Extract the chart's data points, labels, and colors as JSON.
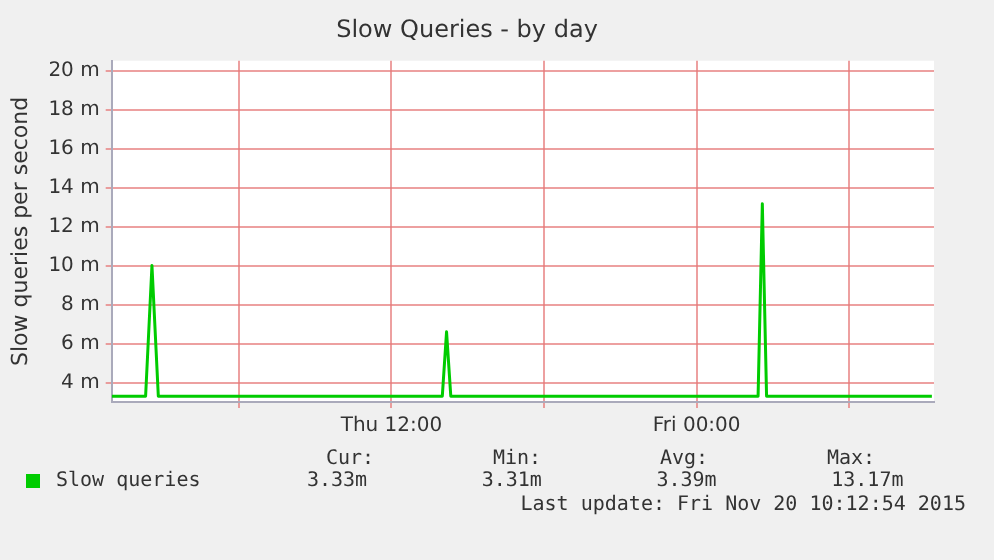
{
  "chart_data": {
    "type": "line",
    "title": "Slow Queries - by day",
    "ylabel": "Slow queries per second",
    "x": [
      "2015-11-19T01:00",
      "2015-11-19T02:20",
      "2015-11-19T02:35",
      "2015-11-19T02:50",
      "2015-11-19T05:00",
      "2015-11-19T08:00",
      "2015-11-19T11:00",
      "2015-11-19T14:00",
      "2015-11-19T14:10",
      "2015-11-19T14:20",
      "2015-11-19T17:00",
      "2015-11-19T20:00",
      "2015-11-19T23:00",
      "2015-11-20T02:25",
      "2015-11-20T02:35",
      "2015-11-20T02:45",
      "2015-11-20T05:00",
      "2015-11-20T08:00",
      "2015-11-20T09:15"
    ],
    "series": [
      {
        "name": "Slow queries",
        "color": "#00cc00",
        "values": [
          3.3,
          3.3,
          10.0,
          3.3,
          3.3,
          3.3,
          3.3,
          3.3,
          6.6,
          3.3,
          3.3,
          3.3,
          3.3,
          3.3,
          13.17,
          3.3,
          3.3,
          3.3,
          3.3
        ]
      }
    ],
    "xlim": [
      "2015-11-19T01:00",
      "2015-11-20T09:20"
    ],
    "xticks": [
      {
        "value": "2015-11-19T06:00",
        "label": null
      },
      {
        "value": "2015-11-19T12:00",
        "label": "Thu 12:00"
      },
      {
        "value": "2015-11-19T18:00",
        "label": null
      },
      {
        "value": "2015-11-20T00:00",
        "label": "Fri 00:00"
      },
      {
        "value": "2015-11-20T06:00",
        "label": null
      }
    ],
    "ylim": [
      3,
      20.5
    ],
    "yticks": [
      {
        "value": 4,
        "label": "4 m"
      },
      {
        "value": 6,
        "label": "6 m"
      },
      {
        "value": 8,
        "label": "8 m"
      },
      {
        "value": 10,
        "label": "10 m"
      },
      {
        "value": 12,
        "label": "12 m"
      },
      {
        "value": 14,
        "label": "14 m"
      },
      {
        "value": 16,
        "label": "16 m"
      },
      {
        "value": 18,
        "label": "18 m"
      },
      {
        "value": 20,
        "label": "20 m"
      }
    ],
    "grid": true,
    "legend": "bottom",
    "marker": "none",
    "line_style": "solid",
    "annotations": [
      "Cur:",
      "Min:",
      "Avg:",
      "Max:",
      "3.33m",
      "3.31m",
      "3.39m",
      "13.17m",
      "Last update: Fri Nov 20 10:12:54 2015"
    ]
  }
}
